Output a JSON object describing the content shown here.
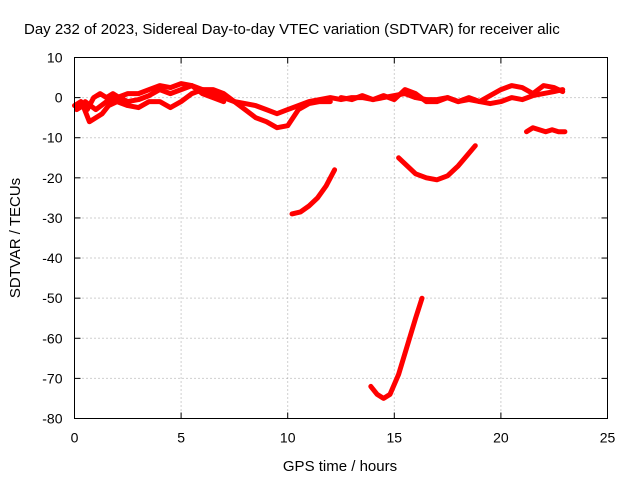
{
  "chart_data": {
    "type": "line",
    "title": "Day 232 of 2023, Sidereal Day-to-day VTEC variation (SDTVAR) for receiver alic",
    "xlabel": "GPS time / hours",
    "ylabel": "SDTVAR / TECUs",
    "xlim": [
      0,
      25
    ],
    "ylim": [
      -80,
      10
    ],
    "xticks": [
      0,
      5,
      10,
      15,
      20,
      25
    ],
    "yticks": [
      10,
      0,
      -10,
      -20,
      -30,
      -40,
      -50,
      -60,
      -70,
      -80
    ],
    "grid": true,
    "line_color": "#ff0000",
    "series": [
      {
        "points": [
          [
            0.0,
            -2
          ],
          [
            0.3,
            -1
          ],
          [
            0.6,
            -3
          ],
          [
            0.9,
            0
          ],
          [
            1.2,
            1
          ],
          [
            1.5,
            0
          ],
          [
            1.8,
            1
          ],
          [
            2.1,
            0
          ],
          [
            2.5,
            -1
          ],
          [
            3.0,
            -0.5
          ],
          [
            3.5,
            0.5
          ],
          [
            4.0,
            2
          ],
          [
            4.5,
            1
          ],
          [
            5.0,
            2
          ],
          [
            5.5,
            3
          ],
          [
            6.0,
            2
          ],
          [
            6.5,
            1
          ],
          [
            7.0,
            0
          ],
          [
            7.5,
            -1
          ],
          [
            8.0,
            -1.5
          ],
          [
            8.5,
            -2
          ],
          [
            9.0,
            -3
          ],
          [
            9.5,
            -4
          ],
          [
            10.0,
            -3
          ],
          [
            10.5,
            -2
          ],
          [
            11.0,
            -1
          ],
          [
            11.5,
            -0.5
          ],
          [
            12.0,
            0
          ],
          [
            12.5,
            -0.5
          ],
          [
            13.0,
            0
          ],
          [
            13.5,
            0
          ],
          [
            14.0,
            -0.5
          ],
          [
            14.5,
            0
          ],
          [
            15.0,
            0.5
          ],
          [
            15.5,
            1
          ],
          [
            16.0,
            0
          ],
          [
            16.5,
            -0.5
          ],
          [
            17.0,
            -0.5
          ],
          [
            17.5,
            0
          ],
          [
            18.0,
            -1
          ],
          [
            18.5,
            0
          ],
          [
            19.0,
            -1
          ],
          [
            19.5,
            -1.5
          ],
          [
            20.0,
            -1
          ],
          [
            20.5,
            0
          ],
          [
            21.0,
            -0.5
          ],
          [
            21.5,
            0.5
          ],
          [
            22.0,
            1
          ],
          [
            22.5,
            1.5
          ],
          [
            22.9,
            2
          ]
        ]
      },
      {
        "points": [
          [
            0.1,
            -3
          ],
          [
            0.4,
            -2
          ],
          [
            0.7,
            -6
          ],
          [
            1.0,
            -5
          ],
          [
            1.3,
            -4
          ],
          [
            1.6,
            -2
          ],
          [
            2.0,
            -1
          ],
          [
            2.5,
            -2
          ],
          [
            3.0,
            -2.5
          ],
          [
            3.5,
            -1
          ],
          [
            4.0,
            -1
          ],
          [
            4.5,
            -2.5
          ],
          [
            5.0,
            -1
          ],
          [
            5.5,
            1
          ],
          [
            6.0,
            2
          ],
          [
            6.5,
            2
          ],
          [
            7.0,
            1
          ],
          [
            7.5,
            -1
          ],
          [
            8.0,
            -3
          ],
          [
            8.5,
            -5
          ],
          [
            9.0,
            -6
          ],
          [
            9.5,
            -7.5
          ],
          [
            10.0,
            -7
          ],
          [
            10.5,
            -3
          ],
          [
            11.0,
            -1.5
          ],
          [
            11.5,
            -1
          ],
          [
            12.0,
            -1
          ]
        ]
      },
      {
        "points": [
          [
            0.5,
            -1
          ],
          [
            1.0,
            -3
          ],
          [
            1.5,
            -1
          ],
          [
            2.0,
            0
          ],
          [
            2.5,
            1
          ],
          [
            3.0,
            1
          ],
          [
            3.5,
            2
          ],
          [
            4.0,
            3
          ],
          [
            4.5,
            2.5
          ],
          [
            5.0,
            3.5
          ],
          [
            5.5,
            3
          ],
          [
            6.0,
            1
          ],
          [
            6.5,
            0
          ],
          [
            7.0,
            -1
          ]
        ]
      },
      {
        "points": [
          [
            12.5,
            0
          ],
          [
            13.0,
            -0.5
          ],
          [
            13.5,
            0.5
          ],
          [
            14.0,
            -0.5
          ],
          [
            14.5,
            0.5
          ],
          [
            15.0,
            -0.5
          ],
          [
            15.5,
            2
          ],
          [
            16.0,
            1
          ],
          [
            16.5,
            -1
          ],
          [
            17.0,
            -1
          ],
          [
            17.5,
            0
          ],
          [
            18.0,
            -1
          ],
          [
            18.5,
            -0.5
          ],
          [
            19.0,
            -1
          ],
          [
            19.5,
            0.5
          ],
          [
            20.0,
            2
          ],
          [
            20.5,
            3
          ],
          [
            21.0,
            2.5
          ],
          [
            21.5,
            1
          ],
          [
            22.0,
            3
          ],
          [
            22.5,
            2.5
          ],
          [
            22.9,
            1.5
          ]
        ]
      },
      {
        "points": [
          [
            10.2,
            -29
          ],
          [
            10.6,
            -28.5
          ],
          [
            11.0,
            -27
          ],
          [
            11.4,
            -25
          ],
          [
            11.8,
            -22
          ],
          [
            12.2,
            -18
          ]
        ]
      },
      {
        "points": [
          [
            15.2,
            -15
          ],
          [
            15.6,
            -17
          ],
          [
            16.0,
            -19
          ],
          [
            16.5,
            -20
          ],
          [
            17.0,
            -20.5
          ],
          [
            17.5,
            -19.5
          ],
          [
            18.0,
            -17
          ],
          [
            18.4,
            -14.5
          ],
          [
            18.8,
            -12
          ]
        ]
      },
      {
        "points": [
          [
            21.2,
            -8.5
          ],
          [
            21.5,
            -7.5
          ],
          [
            21.8,
            -8
          ],
          [
            22.1,
            -8.5
          ],
          [
            22.4,
            -8
          ],
          [
            22.7,
            -8.5
          ],
          [
            23.0,
            -8.5
          ]
        ]
      },
      {
        "points": [
          [
            13.9,
            -72
          ],
          [
            14.2,
            -74
          ],
          [
            14.5,
            -75
          ],
          [
            14.8,
            -74
          ],
          [
            15.2,
            -69
          ],
          [
            15.6,
            -62
          ],
          [
            16.0,
            -55
          ],
          [
            16.3,
            -50
          ]
        ]
      }
    ]
  }
}
